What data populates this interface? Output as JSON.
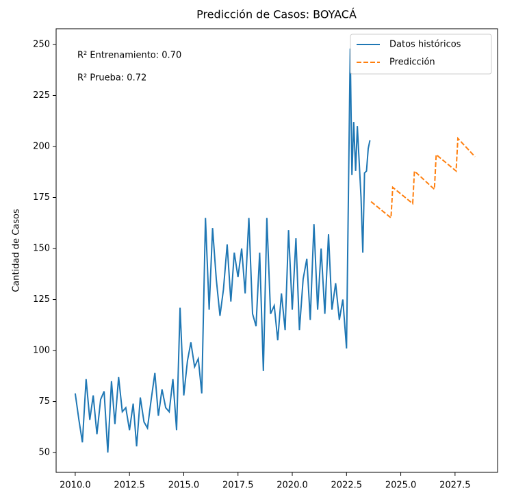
{
  "chart_data": {
    "type": "line",
    "title": "Predicción de Casos: BOYACÁ",
    "y_label": "Cantidad de Casos",
    "annotations": [
      "R² Entrenamiento: 0.70",
      "R² Prueba: 0.72"
    ],
    "legend": "upper right",
    "xlim": [
      2009.12,
      2029.46
    ],
    "ylim": [
      40.3,
      257.7
    ],
    "xticks": [
      {
        "value": 2010,
        "label": "2010.0"
      },
      {
        "value": 2012.5,
        "label": "2012.5"
      },
      {
        "value": 2015,
        "label": "2015.0"
      },
      {
        "value": 2017.5,
        "label": "2017.5"
      },
      {
        "value": 2020,
        "label": "2020.0"
      },
      {
        "value": 2022.5,
        "label": "2022.5"
      },
      {
        "value": 2025,
        "label": "2025.0"
      },
      {
        "value": 2027.5,
        "label": "2027.5"
      }
    ],
    "yticks": [
      50,
      75,
      100,
      125,
      150,
      175,
      200,
      225,
      250
    ],
    "series": [
      {
        "name": "Datos históricos",
        "color": "#1f77b4",
        "dash": false,
        "x": [
          2010,
          2010.17,
          2010.33,
          2010.5,
          2010.67,
          2010.83,
          2011,
          2011.17,
          2011.33,
          2011.5,
          2011.67,
          2011.83,
          2012,
          2012.17,
          2012.33,
          2012.5,
          2012.67,
          2012.83,
          2013,
          2013.17,
          2013.33,
          2013.5,
          2013.67,
          2013.83,
          2014,
          2014.17,
          2014.33,
          2014.5,
          2014.67,
          2014.83,
          2015,
          2015.17,
          2015.33,
          2015.5,
          2015.67,
          2015.83,
          2016,
          2016.17,
          2016.33,
          2016.5,
          2016.67,
          2016.83,
          2017,
          2017.17,
          2017.33,
          2017.5,
          2017.67,
          2017.83,
          2018,
          2018.17,
          2018.33,
          2018.5,
          2018.67,
          2018.83,
          2019,
          2019.17,
          2019.33,
          2019.5,
          2019.67,
          2019.83,
          2020,
          2020.17,
          2020.33,
          2020.5,
          2020.67,
          2020.83,
          2021,
          2021.17,
          2021.33,
          2021.5,
          2021.67,
          2021.83,
          2022,
          2022.17,
          2022.33,
          2022.5,
          2022.67,
          2022.75,
          2022.83,
          2022.92,
          2023,
          2023.17,
          2023.25,
          2023.33,
          2023.42,
          2023.5,
          2023.58
        ],
        "values": [
          79,
          66,
          55,
          86,
          66,
          78,
          59,
          76,
          80,
          50,
          85,
          64,
          87,
          70,
          72,
          61,
          74,
          53,
          77,
          65,
          62,
          76,
          89,
          68,
          81,
          72,
          70,
          86,
          61,
          121,
          78,
          95,
          104,
          92,
          96,
          79,
          165,
          120,
          160,
          135,
          117,
          130,
          152,
          124,
          148,
          136,
          150,
          128,
          165,
          118,
          112,
          148,
          90,
          165,
          118,
          122,
          105,
          128,
          110,
          159,
          120,
          155,
          110,
          135,
          145,
          115,
          162,
          120,
          150,
          118,
          157,
          120,
          133,
          115,
          125,
          101,
          248,
          186,
          212,
          188,
          210,
          175,
          148,
          187,
          188,
          199,
          203
        ]
      },
      {
        "name": "Predicción",
        "color": "#ff7f0e",
        "dash": true,
        "x": [
          2023.63,
          2024.55,
          2024.63,
          2025.55,
          2025.63,
          2026.55,
          2026.63,
          2027.55,
          2027.63,
          2028.42
        ],
        "values": [
          173,
          165,
          180,
          172,
          188,
          179,
          196,
          188,
          204,
          195
        ]
      }
    ]
  }
}
